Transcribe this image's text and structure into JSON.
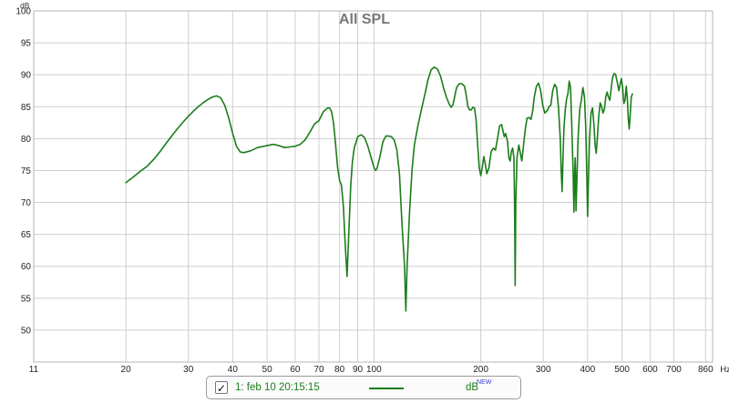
{
  "chart_data": {
    "type": "line",
    "title": "All SPL",
    "ylabel": "dB",
    "xlabel": "",
    "x_unit": "Hz",
    "xscale": "log",
    "xlim": [
      11,
      900
    ],
    "ylim": [
      45,
      100
    ],
    "grid": true,
    "x_ticks": [
      11,
      20,
      30,
      40,
      50,
      60,
      70,
      80,
      90,
      100,
      200,
      300,
      400,
      500,
      600,
      700,
      860
    ],
    "x_tick_labels": [
      "11",
      "20",
      "30",
      "40",
      "50",
      "60",
      "70",
      "80",
      "90",
      "100",
      "200",
      "300",
      "400",
      "500",
      "600",
      "700",
      "860"
    ],
    "y_ticks": [
      50,
      55,
      60,
      65,
      70,
      75,
      80,
      85,
      90,
      95,
      100
    ],
    "legend_placement": "bottom-center",
    "series": [
      {
        "name": "1: feb 10 20:15:15",
        "color": "#1b7d1b",
        "points": [
          [
            20,
            73.1
          ],
          [
            21,
            74.0
          ],
          [
            22,
            74.9
          ],
          [
            23,
            75.7
          ],
          [
            24,
            76.8
          ],
          [
            25,
            78.0
          ],
          [
            26,
            79.3
          ],
          [
            27,
            80.5
          ],
          [
            28,
            81.6
          ],
          [
            29,
            82.6
          ],
          [
            30,
            83.5
          ],
          [
            31,
            84.3
          ],
          [
            32,
            85.0
          ],
          [
            33,
            85.6
          ],
          [
            34,
            86.1
          ],
          [
            35,
            86.5
          ],
          [
            36,
            86.7
          ],
          [
            37,
            86.4
          ],
          [
            38,
            85.2
          ],
          [
            39,
            83.2
          ],
          [
            40,
            80.8
          ],
          [
            41,
            78.8
          ],
          [
            42,
            77.9
          ],
          [
            43,
            77.8
          ],
          [
            45,
            78.1
          ],
          [
            47,
            78.6
          ],
          [
            50,
            78.9
          ],
          [
            52,
            79.1
          ],
          [
            54,
            78.9
          ],
          [
            56,
            78.6
          ],
          [
            58,
            78.7
          ],
          [
            60,
            78.8
          ],
          [
            62,
            79.1
          ],
          [
            64,
            79.8
          ],
          [
            66,
            81.0
          ],
          [
            68,
            82.3
          ],
          [
            70,
            82.8
          ],
          [
            72,
            84.2
          ],
          [
            74,
            84.8
          ],
          [
            75,
            84.8
          ],
          [
            76,
            84.2
          ],
          [
            77,
            82.3
          ],
          [
            78,
            79.0
          ],
          [
            79,
            75.5
          ],
          [
            80,
            73.5
          ],
          [
            81,
            72.7
          ],
          [
            82,
            69.5
          ],
          [
            83,
            63.5
          ],
          [
            84,
            58.4
          ],
          [
            85,
            65.5
          ],
          [
            86,
            72.5
          ],
          [
            87,
            76.5
          ],
          [
            88,
            78.5
          ],
          [
            90,
            80.3
          ],
          [
            92,
            80.6
          ],
          [
            94,
            80.2
          ],
          [
            96,
            78.9
          ],
          [
            98,
            77.2
          ],
          [
            100,
            75.5
          ],
          [
            101,
            75.0
          ],
          [
            102,
            75.3
          ],
          [
            104,
            77.2
          ],
          [
            106,
            79.5
          ],
          [
            108,
            80.4
          ],
          [
            110,
            80.4
          ],
          [
            112,
            80.3
          ],
          [
            114,
            79.8
          ],
          [
            116,
            78.3
          ],
          [
            118,
            74.5
          ],
          [
            120,
            66.5
          ],
          [
            122,
            60.0
          ],
          [
            123,
            53.0
          ],
          [
            124,
            60.0
          ],
          [
            126,
            68.5
          ],
          [
            128,
            75.0
          ],
          [
            130,
            79.0
          ],
          [
            133,
            82.0
          ],
          [
            136,
            84.5
          ],
          [
            139,
            86.8
          ],
          [
            142,
            89.2
          ],
          [
            145,
            90.8
          ],
          [
            148,
            91.2
          ],
          [
            151,
            90.9
          ],
          [
            154,
            89.8
          ],
          [
            157,
            88.0
          ],
          [
            160,
            86.5
          ],
          [
            163,
            85.4
          ],
          [
            165,
            84.9
          ],
          [
            167,
            85.3
          ],
          [
            169,
            86.7
          ],
          [
            171,
            88.0
          ],
          [
            174,
            88.6
          ],
          [
            177,
            88.6
          ],
          [
            180,
            88.2
          ],
          [
            182,
            86.8
          ],
          [
            184,
            85.0
          ],
          [
            186,
            84.5
          ],
          [
            188,
            84.5
          ],
          [
            190,
            84.9
          ],
          [
            192,
            84.8
          ],
          [
            194,
            83.0
          ],
          [
            196,
            79.0
          ],
          [
            198,
            75.5
          ],
          [
            200,
            74.2
          ],
          [
            202,
            75.5
          ],
          [
            204,
            77.2
          ],
          [
            206,
            76.0
          ],
          [
            208,
            74.5
          ],
          [
            211,
            75.5
          ],
          [
            214,
            78.0
          ],
          [
            217,
            78.5
          ],
          [
            220,
            78.2
          ],
          [
            223,
            80.0
          ],
          [
            226,
            82.0
          ],
          [
            229,
            82.2
          ],
          [
            231,
            81.2
          ],
          [
            233,
            80.3
          ],
          [
            235,
            80.8
          ],
          [
            238,
            79.5
          ],
          [
            240,
            77.0
          ],
          [
            242,
            76.5
          ],
          [
            244,
            78.0
          ],
          [
            246,
            78.5
          ],
          [
            248,
            77.0
          ],
          [
            249,
            70.0
          ],
          [
            250,
            57.0
          ],
          [
            251,
            70.0
          ],
          [
            253,
            77.0
          ],
          [
            256,
            79.0
          ],
          [
            259,
            77.5
          ],
          [
            261,
            76.5
          ],
          [
            264,
            79.0
          ],
          [
            267,
            81.5
          ],
          [
            270,
            83.2
          ],
          [
            274,
            83.3
          ],
          [
            277,
            83.0
          ],
          [
            280,
            84.3
          ],
          [
            283,
            86.5
          ],
          [
            287,
            88.2
          ],
          [
            291,
            88.7
          ],
          [
            295,
            87.5
          ],
          [
            299,
            85.2
          ],
          [
            303,
            84.0
          ],
          [
            308,
            84.4
          ],
          [
            312,
            85.1
          ],
          [
            315,
            85.2
          ],
          [
            319,
            87.5
          ],
          [
            323,
            88.5
          ],
          [
            327,
            88.0
          ],
          [
            331,
            85.0
          ],
          [
            335,
            80.0
          ],
          [
            337,
            75.0
          ],
          [
            339,
            71.7
          ],
          [
            341,
            77.0
          ],
          [
            343,
            81.5
          ],
          [
            346,
            84.5
          ],
          [
            349,
            86.2
          ],
          [
            352,
            87.0
          ],
          [
            355,
            89.0
          ],
          [
            358,
            88.0
          ],
          [
            361,
            82.0
          ],
          [
            364,
            75.0
          ],
          [
            366,
            68.5
          ],
          [
            368,
            75.0
          ],
          [
            369,
            77.0
          ],
          [
            370,
            74.0
          ],
          [
            371,
            68.7
          ],
          [
            373,
            73.0
          ],
          [
            376,
            80.0
          ],
          [
            380,
            84.5
          ],
          [
            384,
            86.0
          ],
          [
            388,
            88.0
          ],
          [
            392,
            86.5
          ],
          [
            395,
            82.0
          ],
          [
            398,
            74.0
          ],
          [
            400,
            67.8
          ],
          [
            402,
            73.0
          ],
          [
            405,
            80.0
          ],
          [
            409,
            84.0
          ],
          [
            413,
            84.8
          ],
          [
            417,
            82.0
          ],
          [
            420,
            79.0
          ],
          [
            423,
            77.7
          ],
          [
            426,
            80.0
          ],
          [
            430,
            83.5
          ],
          [
            434,
            85.6
          ],
          [
            438,
            85.0
          ],
          [
            442,
            84.0
          ],
          [
            446,
            84.6
          ],
          [
            450,
            86.5
          ],
          [
            454,
            87.3
          ],
          [
            458,
            86.5
          ],
          [
            462,
            86.0
          ],
          [
            466,
            87.8
          ],
          [
            470,
            89.5
          ],
          [
            475,
            90.2
          ],
          [
            480,
            90.0
          ],
          [
            485,
            88.8
          ],
          [
            490,
            87.5
          ],
          [
            494,
            88.5
          ],
          [
            498,
            89.4
          ],
          [
            502,
            88.0
          ],
          [
            506,
            85.5
          ],
          [
            510,
            86.0
          ],
          [
            514,
            88.2
          ],
          [
            518,
            86.0
          ],
          [
            521,
            83.0
          ],
          [
            524,
            81.5
          ],
          [
            527,
            83.5
          ],
          [
            531,
            86.5
          ],
          [
            535,
            87.0
          ]
        ]
      }
    ]
  },
  "legend": {
    "checkbox_mark": "✓",
    "label": "1: feb 10 20:15:15",
    "unit": "dB",
    "unit_badge": "NEW"
  }
}
